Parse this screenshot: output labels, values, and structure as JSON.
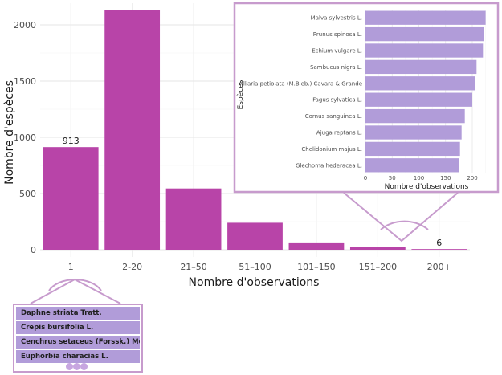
{
  "chart_data": [
    {
      "type": "bar",
      "categories": [
        "1",
        "2-20",
        "21–50",
        "51–100",
        "101–150",
        "151–200",
        "200+"
      ],
      "values": [
        913,
        2130,
        545,
        240,
        65,
        25,
        6
      ],
      "data_labels": [
        {
          "category": "1",
          "text": "913"
        },
        {
          "category": "200+",
          "text": "6"
        }
      ],
      "xlabel": "Nombre d'observations",
      "ylabel": "Nombre d'espèces",
      "ylim": [
        0,
        2150
      ],
      "yticks": [
        "0",
        "500",
        "1000",
        "1500",
        "2000"
      ],
      "grid": true,
      "bar_color": "#b844a8"
    },
    {
      "type": "bar",
      "orientation": "horizontal",
      "categories": [
        "Malva sylvestris L.",
        "Prunus spinosa L.",
        "Echium vulgare L.",
        "Sambucus nigra L.",
        "Alliaria petiolata (M.Bieb.) Cavara & Grande",
        "Fagus sylvatica L.",
        "Cornus sanguinea L.",
        "Ajuga reptans L.",
        "Chelidonium majus L.",
        "Glechoma hederacea L."
      ],
      "values": [
        225,
        222,
        220,
        208,
        205,
        200,
        186,
        180,
        177,
        175
      ],
      "xlabel": "Nombre d'observations",
      "ylabel": "Espèces",
      "xlim": [
        0,
        235
      ],
      "xticks": [
        "0",
        "50",
        "100",
        "150",
        "200"
      ],
      "bar_color": "#b19cd9",
      "frame_color": "#c79bcd"
    }
  ],
  "single_observation_species": [
    "Daphne striata Tratt.",
    "Crepis bursifolia L.",
    "Cenchrus setaceus (Forssk.) Morrone",
    "Euphorbia characias L."
  ]
}
